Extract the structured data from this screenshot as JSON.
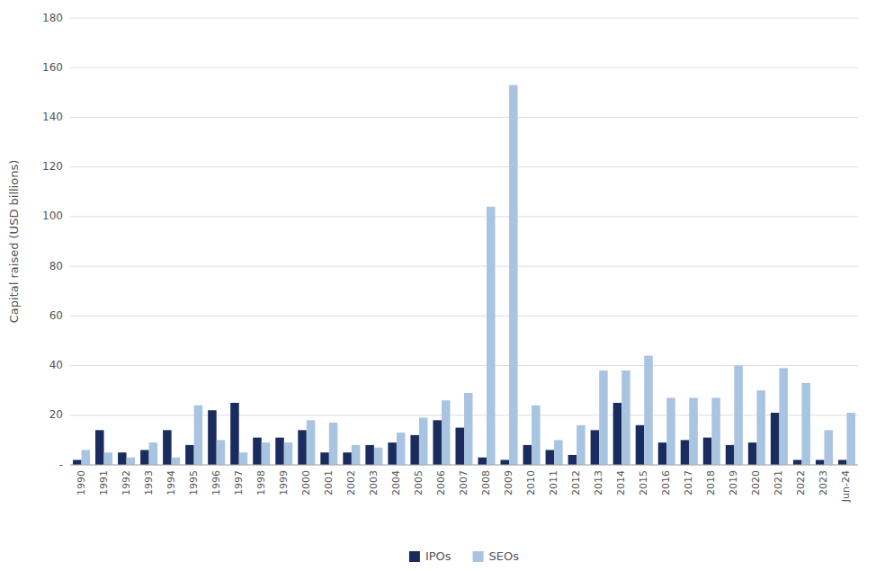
{
  "chart_data": {
    "type": "bar",
    "y_label": "Capital raised (USD billions)",
    "categories": [
      "1990",
      "1991",
      "1992",
      "1993",
      "1994",
      "1995",
      "1996",
      "1997",
      "1998",
      "1999",
      "2000",
      "2001",
      "2002",
      "2003",
      "2004",
      "2005",
      "2006",
      "2007",
      "2008",
      "2009",
      "2010",
      "2011",
      "2012",
      "2013",
      "2014",
      "2015",
      "2016",
      "2017",
      "2018",
      "2019",
      "2020",
      "2021",
      "2022",
      "2023",
      "Jun-24"
    ],
    "series": [
      {
        "name": "IPOs",
        "color": "#1a2b5e",
        "values": [
          2,
          14,
          5,
          6,
          14,
          8,
          22,
          25,
          11,
          11,
          14,
          5,
          5,
          8,
          9,
          12,
          18,
          15,
          3,
          2,
          8,
          6,
          4,
          14,
          25,
          16,
          9,
          10,
          11,
          8,
          9,
          21,
          2,
          2,
          2
        ]
      },
      {
        "name": "SEOs",
        "color": "#a8c4e0",
        "values": [
          6,
          5,
          3,
          9,
          3,
          24,
          10,
          5,
          9,
          9,
          18,
          17,
          8,
          7,
          13,
          19,
          26,
          29,
          104,
          153,
          24,
          10,
          16,
          38,
          38,
          44,
          27,
          27,
          27,
          40,
          30,
          39,
          33,
          14,
          21
        ]
      }
    ],
    "ylim": [
      0,
      180
    ],
    "yticks": [
      {
        "value": 0,
        "label": "-"
      },
      20,
      40,
      60,
      80,
      100,
      120,
      140,
      160,
      180
    ],
    "grid": true,
    "legend": "bottom"
  }
}
